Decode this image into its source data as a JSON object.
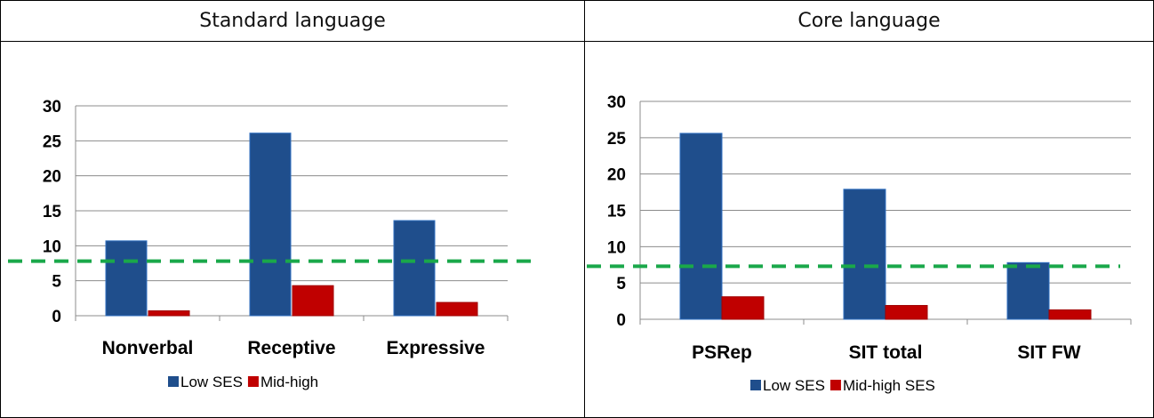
{
  "panels": [
    {
      "header": "Standard language",
      "chart_data": {
        "type": "bar",
        "categories": [
          "Nonverbal",
          "Receptive",
          "Expressive"
        ],
        "series": [
          {
            "name": "Low SES",
            "values": [
              10.7,
              26.1,
              13.6
            ],
            "color": "#1f4e8c"
          },
          {
            "name": "Mid-high",
            "values": [
              0.7,
              4.3,
              1.9
            ],
            "color": "#c00000"
          }
        ],
        "y_ticks": [
          0,
          5,
          10,
          15,
          20,
          25,
          30
        ],
        "ylim": [
          0,
          30
        ],
        "reference_line": {
          "value": 7.8,
          "color": "#1aa84a",
          "style": "dashed"
        },
        "grid": true,
        "legend": "bottom"
      }
    },
    {
      "header": "Core language",
      "chart_data": {
        "type": "bar",
        "categories": [
          "PSRep",
          "SIT total",
          "SIT FW"
        ],
        "series": [
          {
            "name": "Low SES",
            "values": [
              25.6,
              17.9,
              7.8
            ],
            "color": "#1f4e8c"
          },
          {
            "name": "Mid-high SES",
            "values": [
              3.1,
              1.9,
              1.3
            ],
            "color": "#c00000"
          }
        ],
        "y_ticks": [
          0,
          5,
          10,
          15,
          20,
          25,
          30
        ],
        "ylim": [
          0,
          30
        ],
        "reference_line": {
          "value": 7.3,
          "color": "#1aa84a",
          "style": "dashed"
        },
        "grid": true,
        "legend": "bottom"
      }
    }
  ]
}
